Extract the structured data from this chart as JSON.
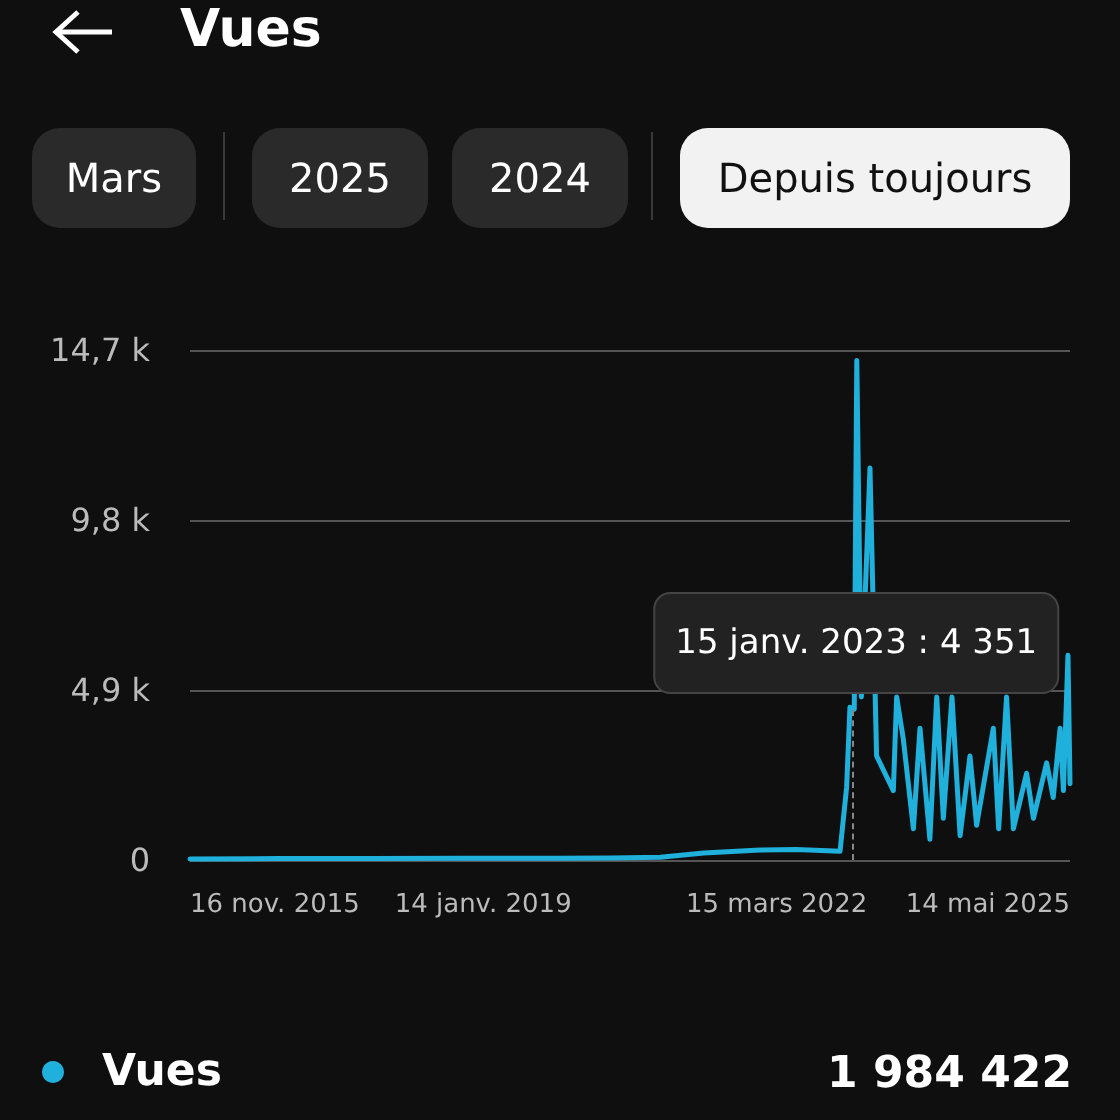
{
  "chart_data": {
    "type": "line",
    "title": "Vues",
    "annotations": [
      "Mars",
      "2025",
      "2024",
      "Depuis toujours",
      "1 984 422",
      {
        "text": "15 janv. 2023 : 4 351",
        "x": "2023-01-15",
        "y": 4351
      }
    ],
    "x": [
      "2015-11-16",
      "2016-11-01",
      "2017-11-01",
      "2018-11-01",
      "2019-11-01",
      "2020-06-01",
      "2020-12-12",
      "2021-06-01",
      "2022-01-09",
      "2022-06-01",
      "2022-11-20",
      "2022-12-16",
      "2022-12-29",
      "2023-01-15",
      "2023-01-25",
      "2023-02-05",
      "2023-02-12",
      "2023-03-18",
      "2023-04-13",
      "2023-06-18",
      "2023-07-01",
      "2023-07-27",
      "2023-09-05",
      "2023-10-01",
      "2023-11-09",
      "2023-12-06",
      "2024-01-01",
      "2024-02-04",
      "2024-03-07",
      "2024-04-15",
      "2024-05-11",
      "2024-07-16",
      "2024-08-06",
      "2024-09-06",
      "2024-10-03",
      "2024-11-24",
      "2024-12-21",
      "2025-02-11",
      "2025-03-09",
      "2025-04-05",
      "2025-04-18",
      "2025-05-06",
      "2025-05-14"
    ],
    "series": [
      {
        "name": "Vues",
        "color": "#1fb0dc",
        "values": [
          30,
          40,
          40,
          50,
          50,
          60,
          80,
          200,
          290,
          300,
          250,
          2100,
          4400,
          4351,
          14400,
          8400,
          4700,
          11300,
          3000,
          2000,
          4700,
          3500,
          900,
          3800,
          600,
          4700,
          1200,
          4700,
          700,
          3000,
          1000,
          3800,
          900,
          4700,
          900,
          2500,
          1200,
          2800,
          1800,
          3800,
          2000,
          5900,
          2200
        ]
      }
    ],
    "xlim": [
      "2015-11-16",
      "2025-05-14"
    ],
    "xticks": [
      {
        "value": "2015-11-16",
        "label": "16 nov. 2015"
      },
      {
        "value": "2019-01-14",
        "label": "14 janv. 2019"
      },
      {
        "value": "2022-03-15",
        "label": "15 mars 2022"
      },
      {
        "value": "2025-05-14",
        "label": "14 mai 2025"
      }
    ],
    "ylim": [
      0,
      14700
    ],
    "yticks": [
      0,
      {
        "value": 4900,
        "label": "4,9 k"
      },
      {
        "value": 9800,
        "label": "9,8 k"
      },
      {
        "value": 14700,
        "label": "14,7 k"
      }
    ],
    "grid": "y",
    "legend": "bottom",
    "marker": "none",
    "line_style": "solid"
  }
}
